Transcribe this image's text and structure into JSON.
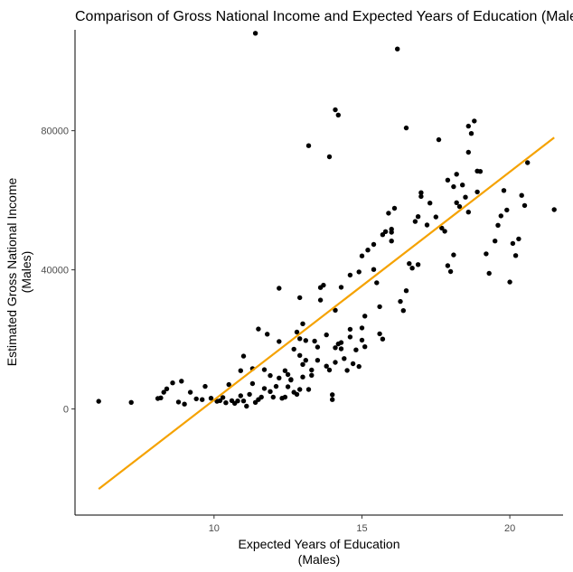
{
  "chart_data": {
    "type": "scatter",
    "title": "Comparison of Gross National Income and Expected Years of Education (Males)",
    "xlabel": [
      "Expected Years of Education",
      "(Males)"
    ],
    "ylabel": [
      "Estimated Gross National Income",
      "(Males)"
    ],
    "xlim": [
      5.3,
      21.8
    ],
    "ylim": [
      -30500,
      109000
    ],
    "x_ticks": [
      {
        "value": 10,
        "label": "10"
      },
      {
        "value": 15,
        "label": "15"
      },
      {
        "value": 20,
        "label": "20"
      }
    ],
    "y_ticks": [
      {
        "value": 0,
        "label": "0"
      },
      {
        "value": 40000,
        "label": "40000"
      },
      {
        "value": 80000,
        "label": "80000"
      }
    ],
    "grid": false,
    "point_color": "#000000",
    "trend_color": "#f5a200",
    "trend_line": {
      "x": [
        6.1,
        21.5
      ],
      "y": [
        -23000,
        78000
      ]
    },
    "points": [
      [
        6.1,
        2200
      ],
      [
        7.2,
        1900
      ],
      [
        8.1,
        3000
      ],
      [
        8.2,
        3200
      ],
      [
        8.3,
        4800
      ],
      [
        8.4,
        5800
      ],
      [
        8.6,
        7500
      ],
      [
        8.8,
        2000
      ],
      [
        8.9,
        8000
      ],
      [
        9.0,
        1400
      ],
      [
        9.2,
        4800
      ],
      [
        9.4,
        2900
      ],
      [
        9.6,
        2700
      ],
      [
        9.7,
        6500
      ],
      [
        9.9,
        3100
      ],
      [
        10.1,
        2200
      ],
      [
        10.2,
        2400
      ],
      [
        10.3,
        3300
      ],
      [
        10.4,
        1800
      ],
      [
        10.5,
        7000
      ],
      [
        10.6,
        2400
      ],
      [
        10.7,
        1600
      ],
      [
        10.8,
        2300
      ],
      [
        10.9,
        3800
      ],
      [
        10.9,
        11000
      ],
      [
        11.0,
        2300
      ],
      [
        11.1,
        800
      ],
      [
        11.2,
        4200
      ],
      [
        11.3,
        11600
      ],
      [
        11.4,
        1900
      ],
      [
        11.3,
        7300
      ],
      [
        11.5,
        2700
      ],
      [
        11.5,
        23000
      ],
      [
        11.6,
        3400
      ],
      [
        11.7,
        5900
      ],
      [
        11.7,
        11300
      ],
      [
        11.9,
        9600
      ],
      [
        11.9,
        5000
      ],
      [
        12.0,
        3400
      ],
      [
        12.1,
        6500
      ],
      [
        12.2,
        19400
      ],
      [
        12.2,
        8900
      ],
      [
        12.3,
        3100
      ],
      [
        12.4,
        11000
      ],
      [
        12.4,
        3400
      ],
      [
        12.5,
        6400
      ],
      [
        12.5,
        9900
      ],
      [
        12.6,
        8300
      ],
      [
        12.7,
        4800
      ],
      [
        12.8,
        4200
      ],
      [
        12.9,
        5600
      ],
      [
        12.6,
        8500
      ],
      [
        12.7,
        17200
      ],
      [
        12.8,
        22100
      ],
      [
        12.9,
        20200
      ],
      [
        12.9,
        15400
      ],
      [
        13.0,
        9200
      ],
      [
        13.0,
        12800
      ],
      [
        13.1,
        19700
      ],
      [
        13.1,
        14000
      ],
      [
        13.2,
        5600
      ],
      [
        13.0,
        24500
      ],
      [
        13.3,
        9700
      ],
      [
        13.3,
        11200
      ],
      [
        13.4,
        19500
      ],
      [
        13.5,
        17800
      ],
      [
        13.5,
        14000
      ],
      [
        13.6,
        34900
      ],
      [
        13.7,
        35600
      ],
      [
        13.8,
        12300
      ],
      [
        13.9,
        11200
      ],
      [
        14.0,
        4100
      ],
      [
        14.0,
        2700
      ],
      [
        14.1,
        13400
      ],
      [
        14.1,
        17600
      ],
      [
        14.2,
        18700
      ],
      [
        14.3,
        19100
      ],
      [
        14.3,
        17300
      ],
      [
        14.4,
        14500
      ],
      [
        14.5,
        11100
      ],
      [
        14.6,
        20700
      ],
      [
        14.6,
        22900
      ],
      [
        14.7,
        13000
      ],
      [
        14.8,
        17000
      ],
      [
        14.9,
        12200
      ],
      [
        15.0,
        19800
      ],
      [
        15.0,
        23300
      ],
      [
        15.1,
        26700
      ],
      [
        15.1,
        17900
      ],
      [
        15.0,
        44000
      ],
      [
        15.2,
        45700
      ],
      [
        15.4,
        40100
      ],
      [
        15.5,
        36300
      ],
      [
        15.6,
        29400
      ],
      [
        15.6,
        21600
      ],
      [
        15.7,
        20100
      ],
      [
        15.8,
        51000
      ],
      [
        15.9,
        56300
      ],
      [
        16.0,
        50800
      ],
      [
        16.0,
        48300
      ],
      [
        16.1,
        57700
      ],
      [
        16.3,
        30900
      ],
      [
        16.4,
        28300
      ],
      [
        16.5,
        34000
      ],
      [
        16.6,
        41800
      ],
      [
        16.7,
        40500
      ],
      [
        16.8,
        53900
      ],
      [
        16.9,
        55300
      ],
      [
        17.0,
        62200
      ],
      [
        17.0,
        61100
      ],
      [
        17.2,
        52900
      ],
      [
        17.3,
        59200
      ],
      [
        17.5,
        55200
      ],
      [
        17.6,
        77400
      ],
      [
        17.7,
        52000
      ],
      [
        17.8,
        51100
      ],
      [
        17.9,
        41200
      ],
      [
        18.0,
        39500
      ],
      [
        18.1,
        44300
      ],
      [
        18.1,
        63900
      ],
      [
        18.2,
        59300
      ],
      [
        18.3,
        58200
      ],
      [
        18.4,
        64400
      ],
      [
        18.5,
        60900
      ],
      [
        18.6,
        73800
      ],
      [
        18.7,
        79200
      ],
      [
        18.8,
        82800
      ],
      [
        18.9,
        68400
      ],
      [
        19.0,
        68300
      ],
      [
        19.2,
        44600
      ],
      [
        19.3,
        39000
      ],
      [
        19.5,
        48300
      ],
      [
        19.6,
        52800
      ],
      [
        19.7,
        55500
      ],
      [
        19.8,
        62800
      ],
      [
        19.9,
        57200
      ],
      [
        20.0,
        36500
      ],
      [
        20.1,
        47600
      ],
      [
        20.2,
        44100
      ],
      [
        20.3,
        48900
      ],
      [
        20.4,
        61400
      ],
      [
        20.5,
        58500
      ],
      [
        20.6,
        70800
      ],
      [
        21.5,
        57300
      ],
      [
        18.6,
        56600
      ],
      [
        18.9,
        62400
      ],
      [
        18.6,
        81300
      ],
      [
        16.5,
        80800
      ],
      [
        16.2,
        103500
      ],
      [
        11.4,
        108000
      ],
      [
        13.2,
        75700
      ],
      [
        14.1,
        86000
      ],
      [
        14.2,
        84500
      ],
      [
        13.9,
        72500
      ],
      [
        18.2,
        67500
      ],
      [
        17.9,
        65800
      ],
      [
        16.9,
        41500
      ],
      [
        16.0,
        51700
      ],
      [
        15.7,
        50100
      ],
      [
        15.4,
        47300
      ],
      [
        14.9,
        39400
      ],
      [
        14.6,
        38500
      ],
      [
        14.3,
        35000
      ],
      [
        14.1,
        28400
      ],
      [
        13.8,
        21300
      ],
      [
        13.6,
        31300
      ],
      [
        12.9,
        32000
      ],
      [
        12.2,
        34700
      ],
      [
        11.8,
        21500
      ],
      [
        11.0,
        15200
      ]
    ]
  }
}
